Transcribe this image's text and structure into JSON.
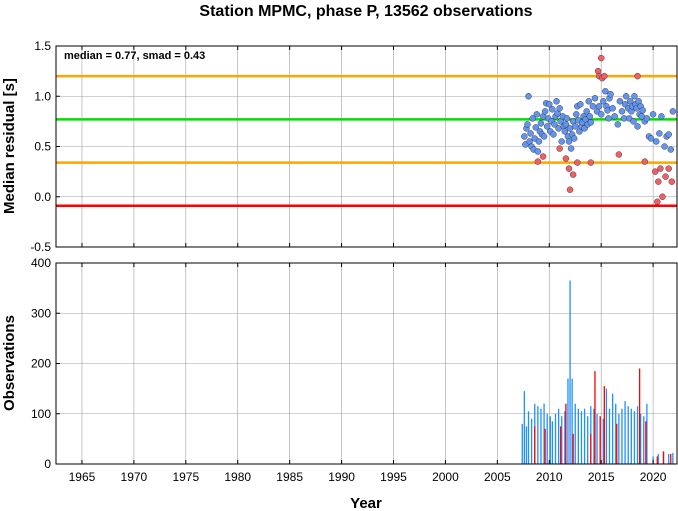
{
  "chart_data": {
    "title": "Station MPMC, phase P, 13562 observations",
    "xlabel": "Year",
    "xticks": [
      1965,
      1970,
      1975,
      1980,
      1985,
      1990,
      1995,
      2000,
      2005,
      2010,
      2015,
      2020
    ],
    "xlim": [
      1962.5,
      2022.3
    ],
    "grid": true,
    "panels": [
      {
        "type": "scatter",
        "ylabel": "Median residual [s]",
        "ylim": [
          -0.5,
          1.5
        ],
        "yticks": [
          "-0.5",
          "0.0",
          "0.5",
          "1.0",
          "1.5"
        ],
        "annotation": "median = 0.77, smad = 0.43",
        "reference_lines": [
          {
            "value": 1.2,
            "color": "#ffa500"
          },
          {
            "value": 0.77,
            "color": "#00e000"
          },
          {
            "value": 0.34,
            "color": "#ffa500"
          },
          {
            "value": -0.09,
            "color": "#ff0000"
          }
        ],
        "series": [
          {
            "color": "#6495ed",
            "points": [
              [
                2007.6,
                0.6
              ],
              [
                2007.7,
                0.52
              ],
              [
                2007.8,
                0.68
              ],
              [
                2007.9,
                0.72
              ],
              [
                2008.0,
                1.0
              ],
              [
                2008.1,
                0.55
              ],
              [
                2008.2,
                0.63
              ],
              [
                2008.3,
                0.5
              ],
              [
                2008.4,
                0.78
              ],
              [
                2008.5,
                0.47
              ],
              [
                2008.6,
                0.58
              ],
              [
                2008.7,
                0.69
              ],
              [
                2008.8,
                0.82
              ],
              [
                2008.9,
                0.45
              ],
              [
                2009.0,
                0.55
              ],
              [
                2009.1,
                0.65
              ],
              [
                2009.2,
                0.73
              ],
              [
                2009.3,
                0.62
              ],
              [
                2009.4,
                0.8
              ],
              [
                2009.5,
                0.6
              ],
              [
                2009.6,
                0.85
              ],
              [
                2009.7,
                0.93
              ],
              [
                2009.8,
                0.7
              ],
              [
                2009.9,
                0.78
              ],
              [
                2010.0,
                0.92
              ],
              [
                2010.1,
                0.65
              ],
              [
                2010.2,
                0.75
              ],
              [
                2010.3,
                0.87
              ],
              [
                2010.4,
                0.62
              ],
              [
                2010.5,
                0.72
              ],
              [
                2010.6,
                0.8
              ],
              [
                2010.7,
                0.95
              ],
              [
                2010.8,
                0.83
              ],
              [
                2010.9,
                0.68
              ],
              [
                2011.0,
                0.88
              ],
              [
                2011.1,
                0.75
              ],
              [
                2011.2,
                0.55
              ],
              [
                2011.3,
                0.8
              ],
              [
                2011.4,
                0.7
              ],
              [
                2011.5,
                0.65
              ],
              [
                2011.6,
                0.72
              ],
              [
                2011.7,
                0.78
              ],
              [
                2011.8,
                0.6
              ],
              [
                2011.9,
                0.55
              ],
              [
                2012.0,
                0.68
              ],
              [
                2012.1,
                0.48
              ],
              [
                2012.2,
                0.62
              ],
              [
                2012.3,
                0.75
              ],
              [
                2012.4,
                0.58
              ],
              [
                2012.5,
                0.7
              ],
              [
                2012.6,
                0.82
              ],
              [
                2012.7,
                0.9
              ],
              [
                2012.8,
                0.76
              ],
              [
                2012.9,
                0.65
              ],
              [
                2013.0,
                0.92
              ],
              [
                2013.1,
                0.7
              ],
              [
                2013.2,
                0.74
              ],
              [
                2013.3,
                0.8
              ],
              [
                2013.4,
                0.68
              ],
              [
                2013.5,
                0.77
              ],
              [
                2013.6,
                0.85
              ],
              [
                2013.7,
                0.72
              ],
              [
                2013.8,
                0.95
              ],
              [
                2013.9,
                0.8
              ],
              [
                2014.0,
                0.74
              ],
              [
                2014.2,
                0.9
              ],
              [
                2014.4,
                0.98
              ],
              [
                2014.6,
                0.85
              ],
              [
                2014.8,
                0.9
              ],
              [
                2015.0,
                0.82
              ],
              [
                2015.2,
                0.95
              ],
              [
                2015.4,
                1.05
              ],
              [
                2015.5,
                0.9
              ],
              [
                2015.6,
                0.86
              ],
              [
                2015.7,
                0.78
              ],
              [
                2015.8,
                0.98
              ],
              [
                2015.9,
                1.02
              ],
              [
                2016.1,
                0.88
              ],
              [
                2016.3,
                0.8
              ],
              [
                2016.6,
                0.72
              ],
              [
                2016.8,
                0.95
              ],
              [
                2017.0,
                0.85
              ],
              [
                2017.2,
                0.78
              ],
              [
                2017.3,
                0.92
              ],
              [
                2017.4,
                1.0
              ],
              [
                2017.6,
                0.88
              ],
              [
                2017.7,
                0.78
              ],
              [
                2017.8,
                0.95
              ],
              [
                2017.9,
                0.85
              ],
              [
                2018.0,
                0.9
              ],
              [
                2018.1,
                0.75
              ],
              [
                2018.2,
                1.0
              ],
              [
                2018.3,
                0.92
              ],
              [
                2018.4,
                0.88
              ],
              [
                2018.5,
                0.7
              ],
              [
                2018.6,
                0.95
              ],
              [
                2018.7,
                0.82
              ],
              [
                2018.8,
                0.9
              ],
              [
                2018.9,
                0.8
              ],
              [
                2019.0,
                0.86
              ],
              [
                2019.2,
                0.75
              ],
              [
                2019.4,
                0.78
              ],
              [
                2019.6,
                0.6
              ],
              [
                2019.8,
                0.58
              ],
              [
                2020.0,
                0.82
              ],
              [
                2020.3,
                0.55
              ],
              [
                2020.6,
                0.63
              ],
              [
                2020.8,
                0.8
              ],
              [
                2021.1,
                0.5
              ],
              [
                2021.3,
                0.6
              ],
              [
                2021.5,
                0.62
              ],
              [
                2021.7,
                0.47
              ],
              [
                2021.9,
                0.85
              ]
            ]
          },
          {
            "color": "#f06060",
            "points": [
              [
                2008.9,
                0.35
              ],
              [
                2009.4,
                0.4
              ],
              [
                2011.0,
                0.48
              ],
              [
                2011.6,
                0.38
              ],
              [
                2011.9,
                0.28
              ],
              [
                2012.0,
                0.07
              ],
              [
                2012.3,
                0.22
              ],
              [
                2012.7,
                0.34
              ],
              [
                2014.0,
                0.34
              ],
              [
                2014.7,
                1.25
              ],
              [
                2014.8,
                1.2
              ],
              [
                2015.0,
                1.38
              ],
              [
                2015.1,
                1.18
              ],
              [
                2015.3,
                1.2
              ],
              [
                2016.7,
                0.42
              ],
              [
                2018.5,
                1.2
              ],
              [
                2019.2,
                0.35
              ],
              [
                2020.2,
                0.25
              ],
              [
                2020.4,
                -0.05
              ],
              [
                2020.5,
                0.15
              ],
              [
                2020.7,
                0.28
              ],
              [
                2020.9,
                0.0
              ],
              [
                2021.2,
                0.2
              ],
              [
                2021.5,
                0.28
              ],
              [
                2021.8,
                0.15
              ]
            ]
          }
        ]
      },
      {
        "type": "bar",
        "ylabel": "Observations",
        "ylim": [
          0,
          400
        ],
        "yticks": [
          "0",
          "100",
          "200",
          "300",
          "400"
        ],
        "series": [
          {
            "color": "#1e90ff",
            "bars": [
              [
                2007.4,
                80
              ],
              [
                2007.6,
                145
              ],
              [
                2007.8,
                75
              ],
              [
                2008.0,
                105
              ],
              [
                2008.3,
                90
              ],
              [
                2008.6,
                120
              ],
              [
                2008.9,
                115
              ],
              [
                2009.2,
                110
              ],
              [
                2009.5,
                120
              ],
              [
                2009.8,
                100
              ],
              [
                2010.1,
                95
              ],
              [
                2010.3,
                85
              ],
              [
                2010.6,
                100
              ],
              [
                2010.9,
                110
              ],
              [
                2011.2,
                95
              ],
              [
                2011.5,
                105
              ],
              [
                2011.8,
                170
              ],
              [
                2012.0,
                365
              ],
              [
                2012.2,
                170
              ],
              [
                2012.5,
                120
              ],
              [
                2012.8,
                110
              ],
              [
                2013.1,
                105
              ],
              [
                2013.4,
                110
              ],
              [
                2013.7,
                95
              ],
              [
                2014.0,
                115
              ],
              [
                2014.3,
                110
              ],
              [
                2014.6,
                100
              ],
              [
                2014.9,
                95
              ],
              [
                2015.2,
                90
              ],
              [
                2015.5,
                150
              ],
              [
                2015.8,
                110
              ],
              [
                2016.1,
                140
              ],
              [
                2016.4,
                120
              ],
              [
                2016.7,
                100
              ],
              [
                2017.0,
                110
              ],
              [
                2017.3,
                125
              ],
              [
                2017.6,
                115
              ],
              [
                2017.9,
                110
              ],
              [
                2018.2,
                105
              ],
              [
                2018.5,
                115
              ],
              [
                2018.8,
                100
              ],
              [
                2019.1,
                95
              ],
              [
                2019.4,
                120
              ],
              [
                2020.0,
                15
              ],
              [
                2020.5,
                20
              ],
              [
                2021.0,
                25
              ],
              [
                2021.5,
                20
              ],
              [
                2021.9,
                22
              ]
            ]
          },
          {
            "color": "#ff0000",
            "bars": [
              [
                2008.6,
                75
              ],
              [
                2009.6,
                70
              ],
              [
                2011.1,
                75
              ],
              [
                2011.6,
                120
              ],
              [
                2012.3,
                60
              ],
              [
                2014.0,
                60
              ],
              [
                2014.4,
                185
              ],
              [
                2014.9,
                95
              ],
              [
                2015.3,
                155
              ],
              [
                2016.5,
                80
              ],
              [
                2018.7,
                190
              ],
              [
                2019.3,
                85
              ],
              [
                2020.4,
                15
              ],
              [
                2021.0,
                25
              ],
              [
                2021.7,
                20
              ]
            ]
          }
        ]
      }
    ]
  }
}
